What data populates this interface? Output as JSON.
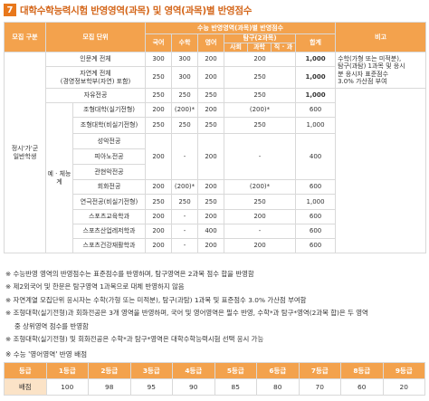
{
  "header": {
    "number": "7",
    "title": "대학수학능력시험 반영영역(과목) 및 영역(과목)별 반영점수"
  },
  "table": {
    "col_headers": {
      "group": "모집 구분",
      "unit": "모집 단위",
      "top": "수능 반영영역(과목)별 반영점수",
      "korean": "국어",
      "math": "수학",
      "english": "영어",
      "inquiry": "탐구(2과목)",
      "social": "사회",
      "science": "과학",
      "vocational": "직 · 과",
      "total": "합계",
      "notes": "비고"
    },
    "group_label_1": "정시'가'군",
    "group_label_2": "일반학생",
    "arts_label": "예 · 체능계",
    "rows": [
      {
        "unit": "인문계 전체",
        "korean": "300",
        "math": "300",
        "english": "200",
        "inquiry": "200",
        "total": "1,000"
      },
      {
        "unit": "자연계 전체",
        "unit2": "(경영정보학부(자연) 포함)",
        "korean": "250",
        "math": "300",
        "english": "200",
        "inquiry": "250",
        "total": "1,000"
      },
      {
        "unit": "자유전공",
        "korean": "250",
        "math": "250",
        "english": "250",
        "inquiry": "250",
        "total": "1,000"
      },
      {
        "unit": "조형대학(실기전형)",
        "korean": "200",
        "math": "(200)*",
        "english": "200",
        "inquiry": "(200)*",
        "total": "600"
      },
      {
        "unit": "조형대학(비실기전형)",
        "korean": "250",
        "math": "250",
        "english": "250",
        "inquiry": "250",
        "total": "1,000"
      },
      {
        "unit": "성악전공"
      },
      {
        "unit": "피아노전공"
      },
      {
        "unit": "관현악전공"
      },
      {
        "unit": "회화전공",
        "korean": "200",
        "math": "(200)*",
        "english": "200",
        "inquiry": "(200)*",
        "total": "600"
      },
      {
        "unit": "연극전공(비실기전형)",
        "korean": "250",
        "math": "250",
        "english": "250",
        "inquiry": "250",
        "total": "1,000"
      },
      {
        "unit": "스포츠교육학과",
        "korean": "200",
        "math": "-",
        "english": "200",
        "inquiry": "200",
        "total": "600"
      },
      {
        "unit": "스포츠산업레저학과",
        "korean": "200",
        "math": "-",
        "english": "400",
        "inquiry": "-",
        "total": "600"
      },
      {
        "unit": "스포츠건강재활학과",
        "korean": "200",
        "math": "-",
        "english": "200",
        "inquiry": "200",
        "total": "600"
      }
    ],
    "music_merged": {
      "korean": "200",
      "math": "-",
      "english": "200",
      "inquiry": "-",
      "total": "400"
    },
    "note_lines": [
      "수학(가형 또는 미적분),",
      "탐구(과탐) 1과목 및 응시",
      "분 응시자 표준점수",
      "3.0% 가산점 부여"
    ]
  },
  "notes": [
    "※ 수능반영 영역의 반영점수는 표준점수를 반영하며, 탐구영역은 2과목 점수 합을 반영함",
    "※ 제2외국어 및 한문은 탐구영역 1과목으로 대체 반영하지 않음",
    "※ 자연계열 모집단위 응시자는 수학(가형 또는 미적분), 탐구(과탐) 1과목 및 표준점수 3.0% 가산점 부여함",
    "※ 조형대학(실기전형)과 회화전공은 3개 영역을 반영하며, 국어 및 영어영역은 필수 반영, 수학*과 탐구*영역(2과목 합)은 두 영역",
    "중 상위영역 점수를 반영함",
    "※ 조형대학(실기전형) 및 회화전공은 수학*과 탐구*영역은 대학수학능력시험 선택 응시 가능"
  ],
  "grade": {
    "title": "※ 수능 '영어영역' 반영 배점",
    "header_label": "등급",
    "row_label": "배점",
    "grades": [
      "1등급",
      "2등급",
      "3등급",
      "4등급",
      "5등급",
      "6등급",
      "7등급",
      "8등급",
      "9등급"
    ],
    "points": [
      "100",
      "98",
      "95",
      "90",
      "85",
      "80",
      "70",
      "60",
      "20"
    ]
  }
}
